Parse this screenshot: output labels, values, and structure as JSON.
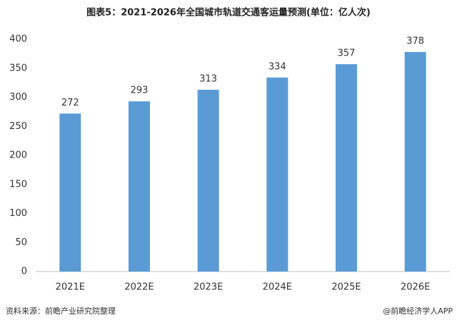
{
  "chart_data": {
    "type": "bar",
    "title": "图表5：2021-2026年全国城市轨道交通客运量预测(单位：亿人次)",
    "categories": [
      "2021E",
      "2022E",
      "2023E",
      "2024E",
      "2025E",
      "2026E"
    ],
    "values": [
      272,
      293,
      313,
      334,
      357,
      378
    ],
    "color": "#5b9bd5",
    "ylim": [
      0,
      400
    ],
    "yticks": [
      0,
      50,
      100,
      150,
      200,
      250,
      300,
      350,
      400
    ],
    "grid": false
  },
  "footer": {
    "source": "资料来源：前瞻产业研究院整理",
    "credit": "@前瞻经济学人APP"
  }
}
